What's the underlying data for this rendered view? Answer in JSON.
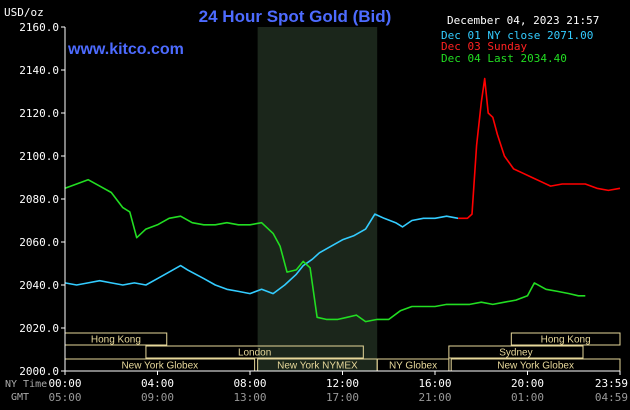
{
  "header": {
    "title": "24 Hour Spot Gold (Bid)",
    "unit": "USD/oz",
    "datetime": "December 04, 2023 21:57",
    "site": "www.kitco.com"
  },
  "legend": [
    {
      "label": "Dec 01 NY close 2071.00",
      "color": "#33ccff"
    },
    {
      "label": "Dec 03 Sunday",
      "color": "#ff0000"
    },
    {
      "label": "Dec 04 Last 2034.40",
      "color": "#22dd22"
    }
  ],
  "sessions": {
    "row1": [
      {
        "label": "Hong Kong"
      },
      {
        "label": "Hong Kong"
      }
    ],
    "row2": [
      {
        "label": "London"
      },
      {
        "label": "Sydney"
      }
    ],
    "row3": [
      {
        "label": "New York Globex"
      },
      {
        "label": "New York NYMEX"
      },
      {
        "label": "NY Globex"
      },
      {
        "label": "New York Globex"
      }
    ]
  },
  "time_axis": {
    "ny_label": "NY Time",
    "gmt_label": "GMT",
    "ny_ticks": [
      "00:00",
      "04:00",
      "08:00",
      "12:00",
      "16:00",
      "20:00",
      "23:59"
    ],
    "gmt_ticks": [
      "05:00",
      "09:00",
      "13:00",
      "17:00",
      "21:00",
      "01:00",
      "04:59"
    ]
  },
  "chart_data": {
    "type": "line",
    "title": "24 Hour Spot Gold (Bid)",
    "ylabel": "USD/oz",
    "ylim": [
      2000,
      2160
    ],
    "yticks": [
      "2160.0",
      "2140.0",
      "2120.0",
      "2100.0",
      "2080.0",
      "2060.0",
      "2040.0",
      "2020.0",
      "2000.0"
    ],
    "x_unit": "hours (NY Time)",
    "xlim": [
      0,
      24
    ],
    "grid": false,
    "shaded_hours": [
      8.33,
      13.5
    ],
    "series": [
      {
        "name": "Dec 01 NY close 2071.00",
        "color": "#33ccff",
        "x": [
          0,
          0.5,
          1,
          1.5,
          2,
          2.5,
          3,
          3.5,
          4,
          4.5,
          5,
          5.3,
          6,
          6.5,
          7,
          7.5,
          8,
          8.5,
          9,
          9.5,
          10,
          10.3,
          10.7,
          11,
          11.5,
          12,
          12.5,
          13,
          13.4,
          13.8,
          14.3,
          14.6,
          15,
          15.5,
          16,
          16.5,
          17
        ],
        "y": [
          2041,
          2040,
          2041,
          2042,
          2041,
          2040,
          2041,
          2040,
          2043,
          2046,
          2049,
          2047,
          2043,
          2040,
          2038,
          2037,
          2036,
          2038,
          2036,
          2040,
          2045,
          2049,
          2052,
          2055,
          2058,
          2061,
          2063,
          2066,
          2073,
          2071,
          2069,
          2067,
          2070,
          2071,
          2071,
          2072,
          2071
        ]
      },
      {
        "name": "Dec 03 Sunday",
        "color": "#ff0000",
        "x": [
          17,
          17.4,
          17.6,
          17.8,
          18.0,
          18.15,
          18.3,
          18.5,
          18.7,
          19,
          19.4,
          19.8,
          20.2,
          20.6,
          21,
          21.5,
          22,
          22.5,
          23,
          23.5,
          24
        ],
        "y": [
          2071,
          2071,
          2073,
          2105,
          2125,
          2136,
          2120,
          2118,
          2110,
          2100,
          2094,
          2092,
          2090,
          2088,
          2086,
          2087,
          2087,
          2087,
          2085,
          2084,
          2085
        ]
      },
      {
        "name": "Dec 04 Last 2034.40",
        "color": "#22dd22",
        "x": [
          0,
          0.5,
          1,
          1.5,
          2,
          2.5,
          2.8,
          3.1,
          3.5,
          4,
          4.5,
          5,
          5.5,
          6,
          6.5,
          7,
          7.5,
          8,
          8.5,
          9,
          9.3,
          9.6,
          10,
          10.3,
          10.6,
          10.9,
          11.3,
          11.8,
          12.2,
          12.6,
          13,
          13.5,
          14,
          14.5,
          15,
          15.5,
          16,
          16.5,
          17,
          17.5,
          18,
          18.5,
          19,
          19.5,
          20,
          20.3,
          20.8,
          21.3,
          21.8,
          22.2,
          22.5
        ],
        "y": [
          2085,
          2087,
          2089,
          2086,
          2083,
          2076,
          2074,
          2062,
          2066,
          2068,
          2071,
          2072,
          2069,
          2068,
          2068,
          2069,
          2068,
          2068,
          2069,
          2064,
          2058,
          2046,
          2047,
          2051,
          2048,
          2025,
          2024,
          2024,
          2025,
          2026,
          2023,
          2024,
          2024,
          2028,
          2030,
          2030,
          2030,
          2031,
          2031,
          2031,
          2032,
          2031,
          2032,
          2033,
          2035,
          2041,
          2038,
          2037,
          2036,
          2035,
          2035
        ]
      }
    ]
  }
}
